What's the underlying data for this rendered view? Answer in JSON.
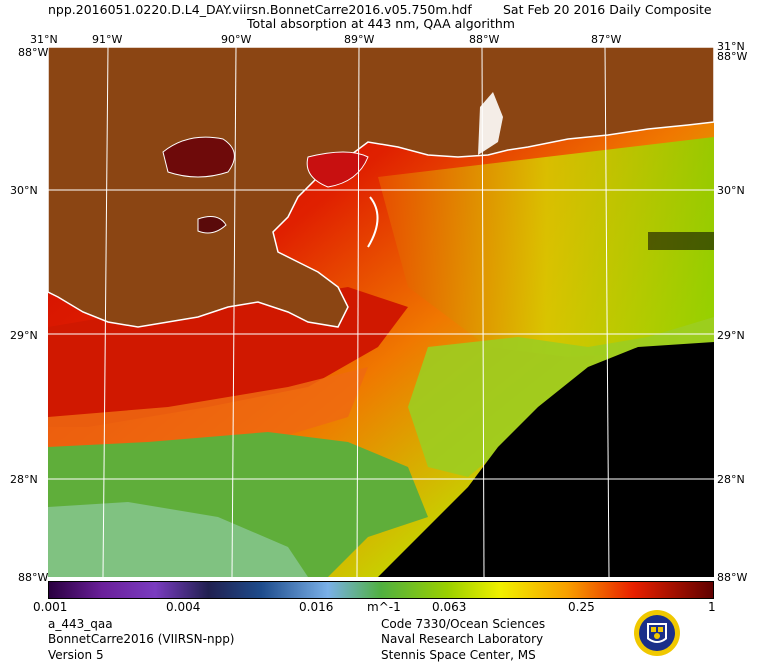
{
  "header": {
    "filename": "npp.2016051.0220.D.L4_DAY.viirsn.BonnetCarre2016.v05.750m.hdf",
    "date": "Sat Feb 20 2016 Daily Composite",
    "product": "Total absorption at 443 nm, QAA algorithm"
  },
  "map": {
    "lon_labels": [
      "91°W",
      "90°W",
      "89°W",
      "88°W",
      "87°W"
    ],
    "lat_labels": [
      "30°N",
      "29°N",
      "28°N"
    ],
    "corner_top": "31°N",
    "corner_top_alt": "88°W",
    "corner_bottom": "88°W",
    "colors": {
      "land": "#8b4513",
      "no_data": "#000000",
      "coast": "#ffffff",
      "grid": "#ffffff"
    }
  },
  "colorbar": {
    "ticks": [
      "0.001",
      "0.004",
      "0.016",
      "0.063",
      "0.25",
      "1"
    ],
    "unit": "m^-1",
    "scale": "log",
    "range": [
      0.001,
      1
    ]
  },
  "footer": {
    "left": [
      "a_443_qaa",
      "BonnetCarre2016 (VIIRSN-npp)",
      "Version 5"
    ],
    "right": [
      "Code 7330/Ocean Sciences",
      "Naval Research Laboratory",
      "Stennis Space Center, MS"
    ]
  }
}
